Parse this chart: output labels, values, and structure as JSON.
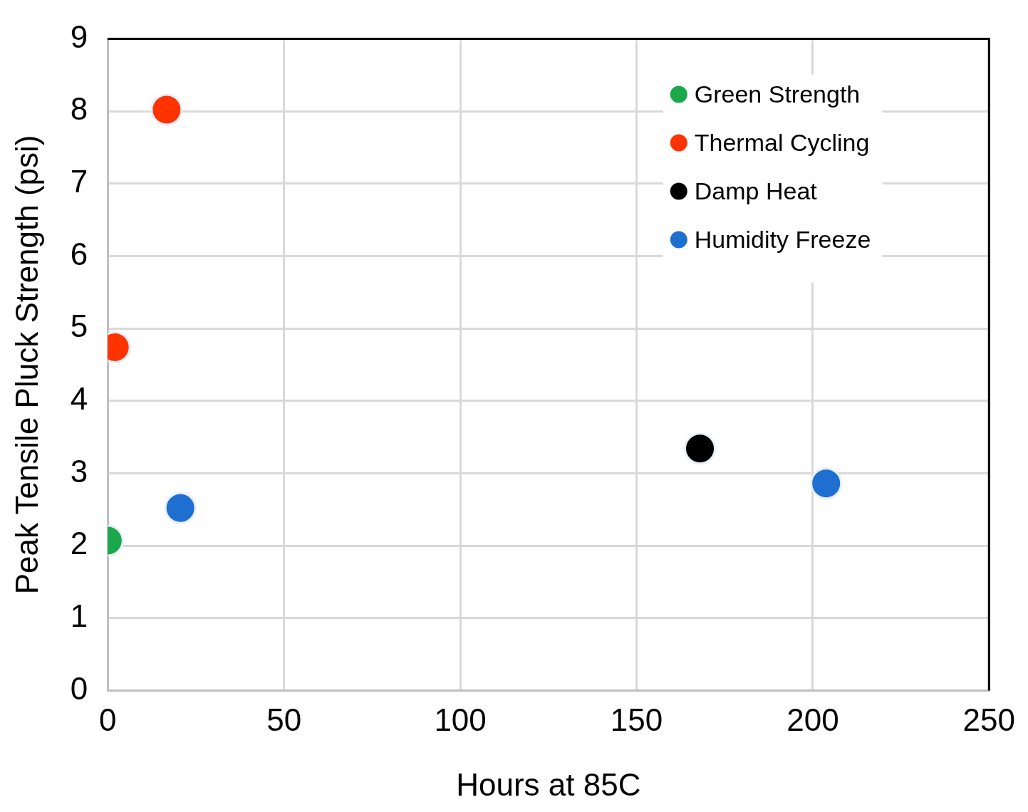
{
  "chart_data": {
    "type": "scatter",
    "xlabel": "Hours at 85C",
    "ylabel": "Peak Tensile Pluck Strength (psi)",
    "xlim": [
      0,
      250
    ],
    "xticks": [
      0,
      50,
      100,
      150,
      200,
      250
    ],
    "ylim": [
      0,
      9
    ],
    "yticks": [
      0,
      1,
      2,
      3,
      4,
      5,
      6,
      7,
      8,
      9
    ],
    "grid": true,
    "legend": "top right",
    "marker": "circle",
    "series": [
      {
        "name": "Green Strength",
        "color": "#1aa84a",
        "x": [
          0
        ],
        "values": [
          2.07
        ]
      },
      {
        "name": "Thermal Cycling",
        "color": "#ff3300",
        "x": [
          2,
          16.7
        ],
        "values": [
          4.74,
          8.02
        ]
      },
      {
        "name": "Damp Heat",
        "color": "#000000",
        "x": [
          168
        ],
        "values": [
          3.34
        ]
      },
      {
        "name": "Humidity Freeze",
        "color": "#1f6fd1",
        "x": [
          20.6,
          203.8
        ],
        "values": [
          2.52,
          2.86
        ]
      }
    ]
  }
}
